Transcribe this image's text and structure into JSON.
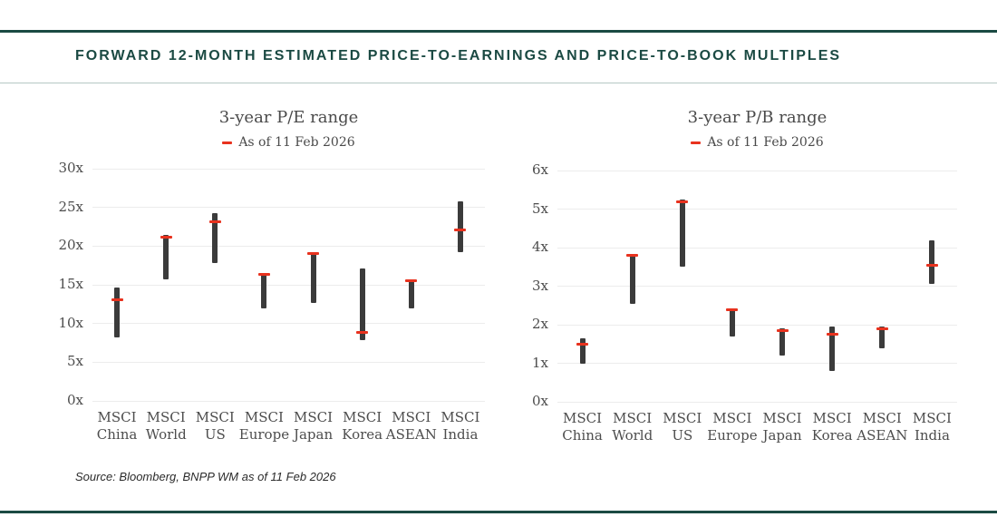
{
  "page": {
    "header_title": "FORWARD 12-MONTH ESTIMATED PRICE-TO-EARNINGS AND PRICE-TO-BOOK MULTIPLES",
    "source_note": "Source: Bloomberg, BNPP WM as of 11 Feb 2026"
  },
  "colors": {
    "accent_teal": "#1B4A43",
    "header_divider": "#B5C8C4",
    "gridline": "#ECECEC",
    "bar": "#3B3B3B",
    "marker_red": "#E8321E",
    "axis_text": "#4D4D4D"
  },
  "chart_data": [
    {
      "type": "range-bar",
      "title": "3-year P/E range",
      "legend": {
        "label": "As of 11 Feb 2026",
        "marker_color": "#E8321E",
        "position": "top"
      },
      "unit": "x",
      "ylim": [
        0,
        30
      ],
      "ytick_step": 5,
      "grid": true,
      "categories": [
        "MSCI China",
        "MSCI World",
        "MSCI US",
        "MSCI Europe",
        "MSCI Japan",
        "MSCI Korea",
        "MSCI ASEAN",
        "MSCI India"
      ],
      "series": [
        {
          "role": "range_low",
          "values": [
            8.2,
            15.7,
            17.8,
            11.9,
            12.6,
            7.8,
            11.9,
            19.2
          ]
        },
        {
          "role": "range_high",
          "values": [
            14.7,
            21.4,
            24.3,
            16.5,
            19.2,
            17.1,
            15.6,
            25.8
          ]
        },
        {
          "role": "current",
          "name": "As of 11 Feb 2026",
          "values": [
            13.1,
            21.1,
            23.1,
            16.4,
            19.1,
            8.8,
            15.5,
            22.1
          ]
        }
      ]
    },
    {
      "type": "range-bar",
      "title": "3-year P/B range",
      "legend": {
        "label": "As of 11 Feb 2026",
        "marker_color": "#E8321E",
        "position": "top"
      },
      "unit": "x",
      "ylim": [
        0,
        6
      ],
      "ytick_step": 1,
      "grid": true,
      "categories": [
        "MSCI China",
        "MSCI World",
        "MSCI US",
        "MSCI Europe",
        "MSCI Japan",
        "MSCI Korea",
        "MSCI ASEAN",
        "MSCI India"
      ],
      "series": [
        {
          "role": "range_low",
          "values": [
            1.0,
            2.55,
            3.5,
            1.7,
            1.2,
            0.8,
            1.4,
            3.05
          ]
        },
        {
          "role": "range_high",
          "values": [
            1.65,
            3.8,
            5.25,
            2.4,
            1.9,
            1.95,
            1.95,
            4.2
          ]
        },
        {
          "role": "current",
          "name": "As of 11 Feb 2026",
          "values": [
            1.5,
            3.8,
            5.2,
            2.4,
            1.85,
            1.75,
            1.9,
            3.55
          ]
        }
      ]
    }
  ]
}
